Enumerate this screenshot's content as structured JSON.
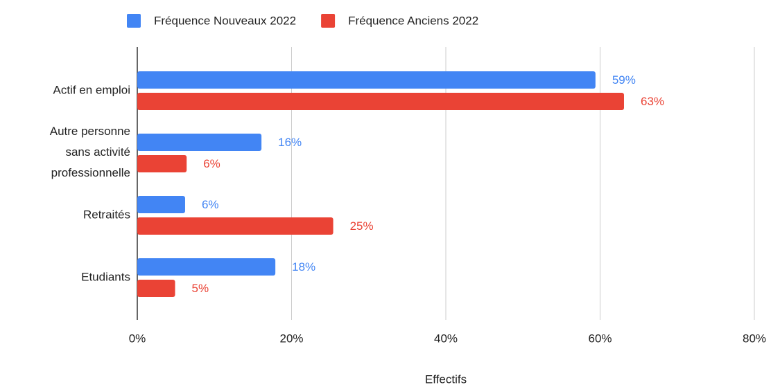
{
  "chart_data": {
    "type": "bar",
    "orientation": "horizontal",
    "x_label": "Effectifs",
    "categories": [
      "Actif en emploi",
      "Autre personne sans activité professionnelle",
      "Retraités",
      "Etudiants"
    ],
    "series": [
      {
        "name": "Fréquence Nouveaux 2022",
        "color": "#4285f4",
        "values": [
          59.4,
          16.1,
          6.2,
          17.9
        ],
        "value_labels": [
          "59%",
          "16%",
          "6%",
          "18%"
        ]
      },
      {
        "name": "Fréquence Anciens 2022",
        "color": "#ea4335",
        "values": [
          63.1,
          6.4,
          25.4,
          4.9
        ],
        "value_labels": [
          "63%",
          "6%",
          "25%",
          "5%"
        ]
      }
    ],
    "xlim": [
      0,
      80
    ],
    "xticks": [
      {
        "value": 0,
        "label": "0%"
      },
      {
        "value": 20,
        "label": "20%"
      },
      {
        "value": 40,
        "label": "40%"
      },
      {
        "value": 60,
        "label": "60%"
      },
      {
        "value": 80,
        "label": "80%"
      }
    ],
    "grid": true,
    "legend": "top"
  }
}
